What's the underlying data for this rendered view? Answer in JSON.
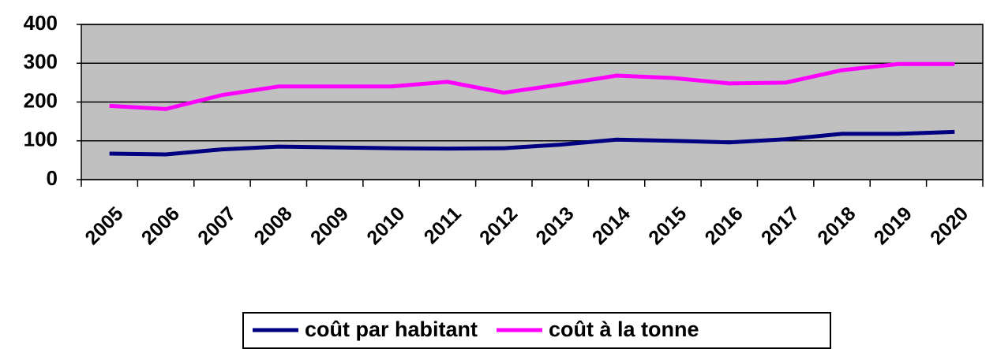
{
  "chart_data": {
    "type": "line",
    "categories": [
      "2005",
      "2006",
      "2007",
      "2008",
      "2009",
      "2010",
      "2011",
      "2012",
      "2013",
      "2014",
      "2015",
      "2016",
      "2017",
      "2018",
      "2019",
      "2020"
    ],
    "series": [
      {
        "name": "coût par habitant",
        "color": "#000080",
        "values": [
          67,
          65,
          78,
          85,
          83,
          81,
          80,
          81,
          90,
          103,
          100,
          96,
          104,
          118,
          118,
          123
        ]
      },
      {
        "name": "coût à la tonne",
        "color": "#ff00ff",
        "values": [
          190,
          182,
          218,
          240,
          240,
          240,
          252,
          224,
          245,
          268,
          262,
          248,
          250,
          282,
          298,
          298
        ]
      }
    ],
    "ylim": [
      0,
      400
    ],
    "yticks": [
      0,
      100,
      200,
      300,
      400
    ],
    "grid": true,
    "legend": "bottom"
  }
}
